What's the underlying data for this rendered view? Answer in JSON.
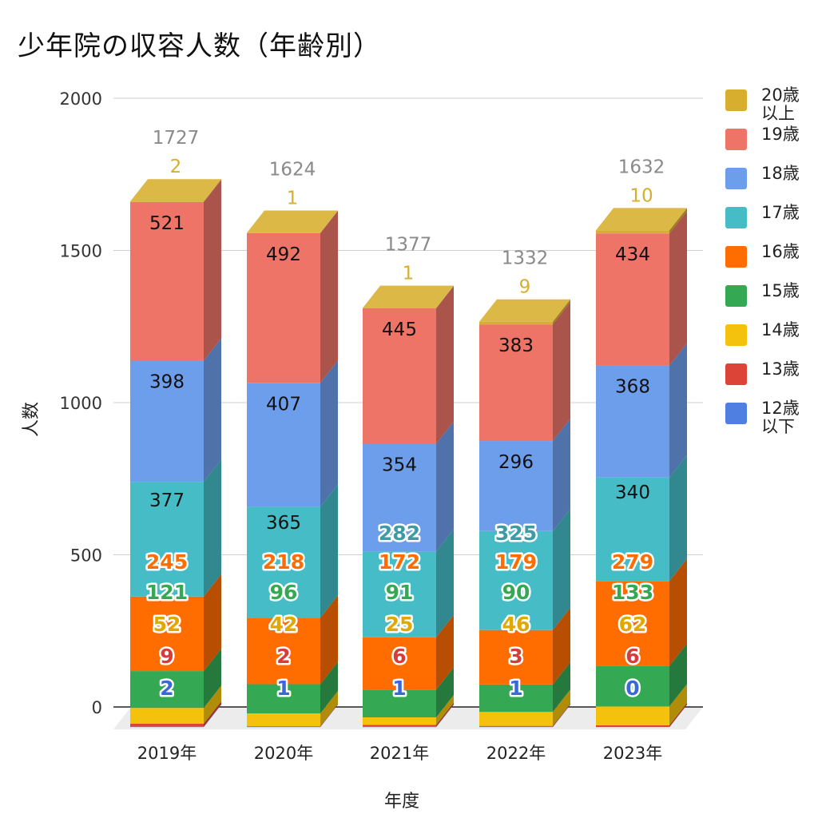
{
  "chart_data": {
    "type": "bar",
    "stacked": true,
    "title": "少年院の収容人数（年齢別）",
    "xlabel": "年度",
    "ylabel": "人数",
    "ylim": [
      0,
      2000
    ],
    "yticks": [
      "0",
      "500",
      "1000",
      "1500",
      "2000"
    ],
    "grid": true,
    "legend_position": "right",
    "categories": [
      "2019年",
      "2020年",
      "2021年",
      "2022年",
      "2023年"
    ],
    "totals": [
      "1727",
      "1624",
      "1377",
      "1332",
      "1632"
    ],
    "series": [
      {
        "name": "12歳\n以下",
        "color": "#4f7fe0",
        "values": [
          2,
          1,
          1,
          1,
          0
        ]
      },
      {
        "name": "13歳",
        "color": "#db4437",
        "values": [
          9,
          2,
          6,
          3,
          6
        ]
      },
      {
        "name": "14歳",
        "color": "#f4c20d",
        "values": [
          52,
          42,
          25,
          46,
          62
        ]
      },
      {
        "name": "15歳",
        "color": "#34a853",
        "values": [
          121,
          96,
          91,
          90,
          133
        ]
      },
      {
        "name": "16歳",
        "color": "#ff6d01",
        "values": [
          245,
          218,
          172,
          179,
          279
        ]
      },
      {
        "name": "17歳",
        "color": "#46bdc6",
        "values": [
          377,
          365,
          282,
          325,
          340
        ]
      },
      {
        "name": "18歳",
        "color": "#6d9eeb",
        "values": [
          398,
          407,
          354,
          296,
          368
        ]
      },
      {
        "name": "19歳",
        "color": "#ee7468",
        "values": [
          521,
          492,
          445,
          383,
          434
        ]
      },
      {
        "name": "20歳\n以上",
        "color": "#d7ae2d",
        "values": [
          2,
          1,
          1,
          9,
          10
        ]
      }
    ]
  }
}
